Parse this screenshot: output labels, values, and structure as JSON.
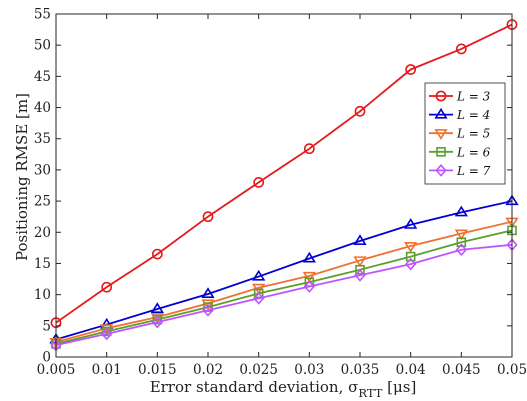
{
  "chart_data": {
    "type": "line",
    "title": "",
    "xlabel": "Error standard deviation, σ",
    "xlabel_sub": "RTT",
    "xlabel_unit": " [μs]",
    "ylabel": "Positioning RMSE [m]",
    "xlim": [
      0.005,
      0.05
    ],
    "ylim": [
      0,
      55
    ],
    "x": [
      0.005,
      0.01,
      0.015,
      0.02,
      0.025,
      0.03,
      0.035,
      0.04,
      0.045,
      0.05
    ],
    "x_tick_labels": [
      "0.005",
      "0.01",
      "0.015",
      "0.02",
      "0.025",
      "0.03",
      "0.035",
      "0.04",
      "0.045",
      "0.05"
    ],
    "y_ticks": [
      0,
      5,
      10,
      15,
      20,
      25,
      30,
      35,
      40,
      45,
      50,
      55
    ],
    "legend_position": "upper-right",
    "grid": false,
    "series": [
      {
        "name": "L = 3",
        "color": "#e41a1c",
        "marker": "circle",
        "values": [
          5.5,
          11.2,
          16.5,
          22.5,
          28.0,
          33.4,
          39.4,
          46.1,
          49.4,
          53.3
        ]
      },
      {
        "name": "L = 4",
        "color": "#0000d0",
        "marker": "triangle-up",
        "values": [
          2.8,
          5.2,
          7.7,
          10.1,
          12.9,
          15.8,
          18.6,
          21.2,
          23.2,
          25.0
        ]
      },
      {
        "name": "L = 5",
        "color": "#f07030",
        "marker": "triangle-down",
        "values": [
          2.4,
          4.6,
          6.4,
          8.6,
          11.1,
          13.0,
          15.5,
          17.8,
          19.8,
          21.7
        ]
      },
      {
        "name": "L = 6",
        "color": "#5aa02c",
        "marker": "square",
        "values": [
          2.1,
          4.1,
          6.0,
          8.0,
          10.2,
          12.0,
          14.0,
          16.1,
          18.4,
          20.3
        ]
      },
      {
        "name": "L = 7",
        "color": "#c055ff",
        "marker": "diamond",
        "values": [
          1.9,
          3.7,
          5.6,
          7.5,
          9.4,
          11.3,
          13.1,
          14.9,
          17.2,
          18.0
        ]
      }
    ]
  }
}
